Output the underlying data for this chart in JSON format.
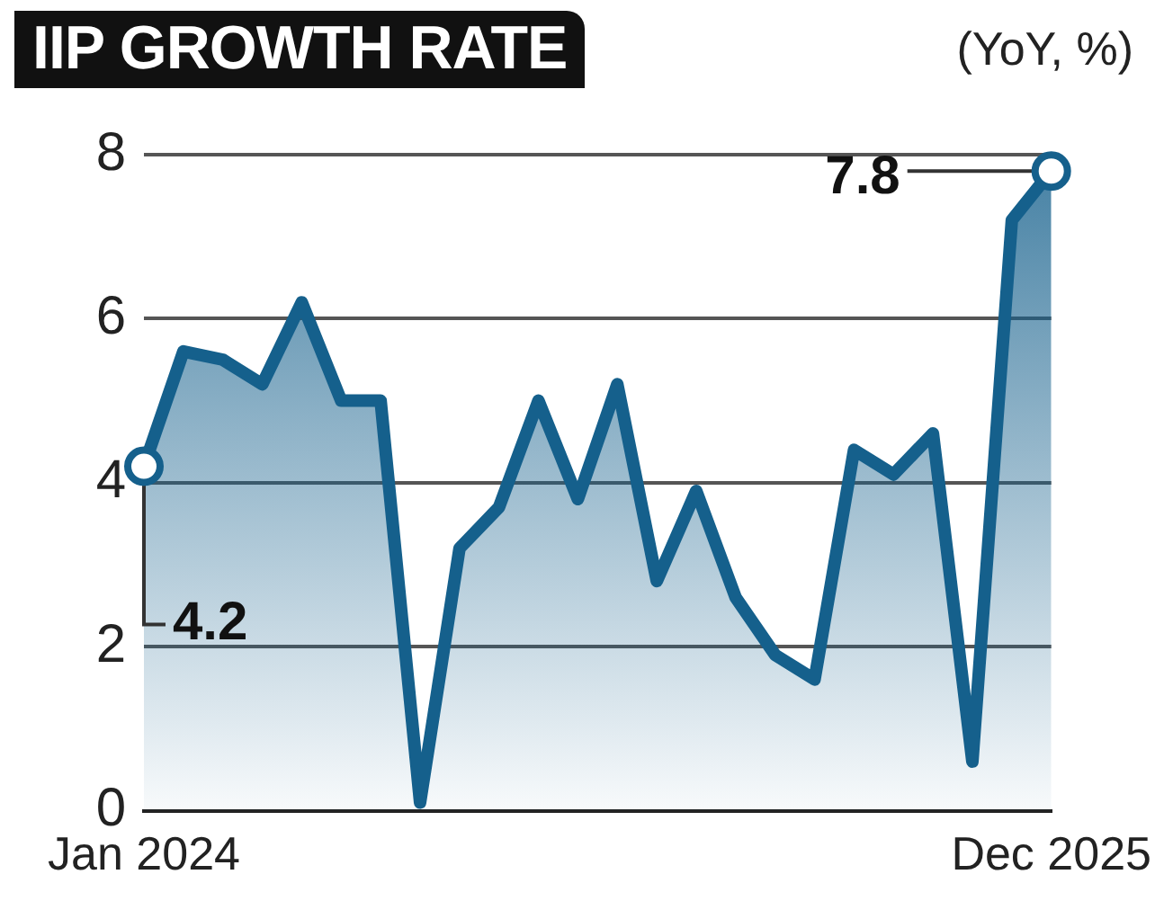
{
  "chart_data": {
    "type": "area",
    "title": "IIP GROWTH RATE",
    "subtitle": "(YoY, %)",
    "categories": [
      "Jan 2024",
      null,
      null,
      null,
      null,
      null,
      null,
      null,
      null,
      null,
      null,
      null,
      null,
      null,
      null,
      null,
      null,
      null,
      null,
      null,
      null,
      null,
      null,
      "Dec 2025"
    ],
    "series": [
      {
        "color": "#15608c",
        "values": [
          4.2,
          5.6,
          5.5,
          5.2,
          6.2,
          5.0,
          5.0,
          0.1,
          3.2,
          3.7,
          5.0,
          3.8,
          5.2,
          2.8,
          3.9,
          2.6,
          1.9,
          1.6,
          4.4,
          4.1,
          4.6,
          0.6,
          7.2,
          7.8
        ]
      }
    ],
    "ylim": [
      0,
      8
    ],
    "yticks": [
      0,
      2,
      4,
      6,
      8
    ],
    "grid": "y",
    "marker": "none",
    "legend": false,
    "annotations": [
      {
        "text": "4.2",
        "x": "Jan 2024",
        "y": 4.2
      },
      {
        "text": "7.8",
        "x": "Dec 2025",
        "y": 7.8
      }
    ]
  }
}
